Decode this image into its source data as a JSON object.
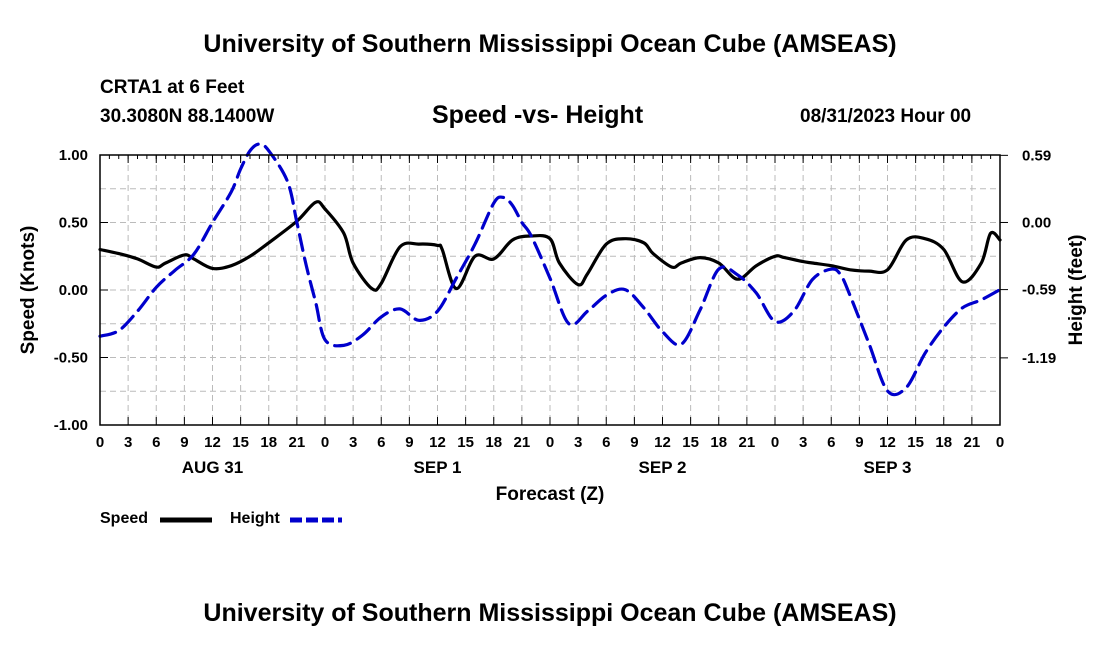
{
  "header": {
    "title": "University of Southern Mississippi Ocean Cube (AMSEAS)",
    "station": "CRTA1 at 6 Feet",
    "coordinates": "30.3080N  88.1400W",
    "subtitle": "Speed -vs- Height",
    "datetime": "08/31/2023 Hour 00"
  },
  "footer": {
    "title": "University of Southern Mississippi Ocean Cube (AMSEAS)"
  },
  "legend": {
    "speed_label": "Speed",
    "height_label": "Height"
  },
  "colors": {
    "speed": "#000000",
    "height": "#0000cc",
    "grid": "#bbbbbb"
  },
  "chart_data": {
    "type": "line",
    "xlabel": "Forecast (Z)",
    "ylabel": "Speed (Knots)",
    "y2label": "Height (feet)",
    "x_range": [
      0,
      96
    ],
    "ylim": [
      -1.0,
      1.0
    ],
    "y2lim": [
      -1.78,
      0.593
    ],
    "y_ticks": [
      1.0,
      0.5,
      0.0,
      -0.5,
      -1.0
    ],
    "y_tick_labels": [
      "1.00",
      "0.50",
      "0.00",
      "-0.50",
      "-1.00"
    ],
    "y2_ticks": [
      0.59,
      0.0,
      -0.59,
      -1.19
    ],
    "y2_tick_labels": [
      "0.59",
      "0.00",
      "-0.59",
      "-1.19"
    ],
    "x_tick_labels": [
      "0",
      "3",
      "6",
      "9",
      "12",
      "15",
      "18",
      "21",
      "0",
      "3",
      "6",
      "9",
      "12",
      "15",
      "18",
      "21",
      "0",
      "3",
      "6",
      "9",
      "12",
      "15",
      "18",
      "21",
      "0",
      "3",
      "6",
      "9",
      "12",
      "15",
      "18",
      "21",
      "0"
    ],
    "day_labels": [
      {
        "label": "AUG 31",
        "hour": 12
      },
      {
        "label": "SEP 1",
        "hour": 36
      },
      {
        "label": "SEP 2",
        "hour": 60
      },
      {
        "label": "SEP 3",
        "hour": 84
      }
    ],
    "series": [
      {
        "name": "Speed",
        "axis": "left",
        "style": "solid",
        "x": [
          0,
          2,
          4,
          6,
          7,
          9,
          10,
          12,
          14,
          16,
          18,
          21,
          23,
          24,
          26,
          27,
          29,
          30,
          32,
          34,
          36,
          36.5,
          38,
          40,
          42,
          44,
          46,
          48,
          49,
          51,
          52,
          54,
          56,
          58,
          59,
          61,
          62,
          64,
          66,
          68,
          70,
          72,
          73,
          75,
          76,
          78,
          80,
          82,
          84,
          86,
          88,
          90,
          92,
          94,
          95,
          96
        ],
        "y": [
          0.3,
          0.27,
          0.23,
          0.17,
          0.2,
          0.26,
          0.23,
          0.16,
          0.18,
          0.25,
          0.35,
          0.51,
          0.65,
          0.6,
          0.42,
          0.2,
          0.01,
          0.05,
          0.32,
          0.34,
          0.33,
          0.3,
          0.01,
          0.25,
          0.23,
          0.37,
          0.4,
          0.38,
          0.2,
          0.04,
          0.12,
          0.34,
          0.38,
          0.35,
          0.27,
          0.17,
          0.2,
          0.24,
          0.2,
          0.08,
          0.18,
          0.25,
          0.24,
          0.21,
          0.2,
          0.18,
          0.15,
          0.14,
          0.15,
          0.37,
          0.38,
          0.3,
          0.06,
          0.2,
          0.42,
          0.37
        ]
      },
      {
        "name": "Height",
        "axis": "right",
        "style": "dashed",
        "x": [
          0,
          2,
          4,
          6,
          8,
          10,
          12,
          14,
          15,
          16,
          17,
          18,
          20,
          21,
          22,
          23,
          24,
          26,
          28,
          30,
          32,
          34,
          36,
          38,
          40,
          42,
          43,
          44,
          45,
          46,
          48,
          50,
          52,
          54,
          56,
          58,
          60,
          62,
          64,
          66,
          68,
          70,
          72,
          74,
          76,
          78,
          79,
          80,
          82,
          84,
          86,
          88,
          90,
          92,
          94,
          96
        ],
        "y": [
          -1.0,
          -0.95,
          -0.78,
          -0.57,
          -0.42,
          -0.28,
          0.0,
          0.27,
          0.47,
          0.63,
          0.69,
          0.63,
          0.36,
          0.0,
          -0.38,
          -0.7,
          -1.03,
          -1.08,
          -0.99,
          -0.83,
          -0.76,
          -0.86,
          -0.78,
          -0.49,
          -0.19,
          0.17,
          0.22,
          0.15,
          0.0,
          -0.12,
          -0.49,
          -0.89,
          -0.78,
          -0.64,
          -0.59,
          -0.75,
          -0.96,
          -1.07,
          -0.77,
          -0.41,
          -0.46,
          -0.62,
          -0.87,
          -0.78,
          -0.5,
          -0.41,
          -0.46,
          -0.64,
          -1.06,
          -1.48,
          -1.45,
          -1.15,
          -0.92,
          -0.75,
          -0.68,
          -0.59
        ]
      }
    ]
  }
}
